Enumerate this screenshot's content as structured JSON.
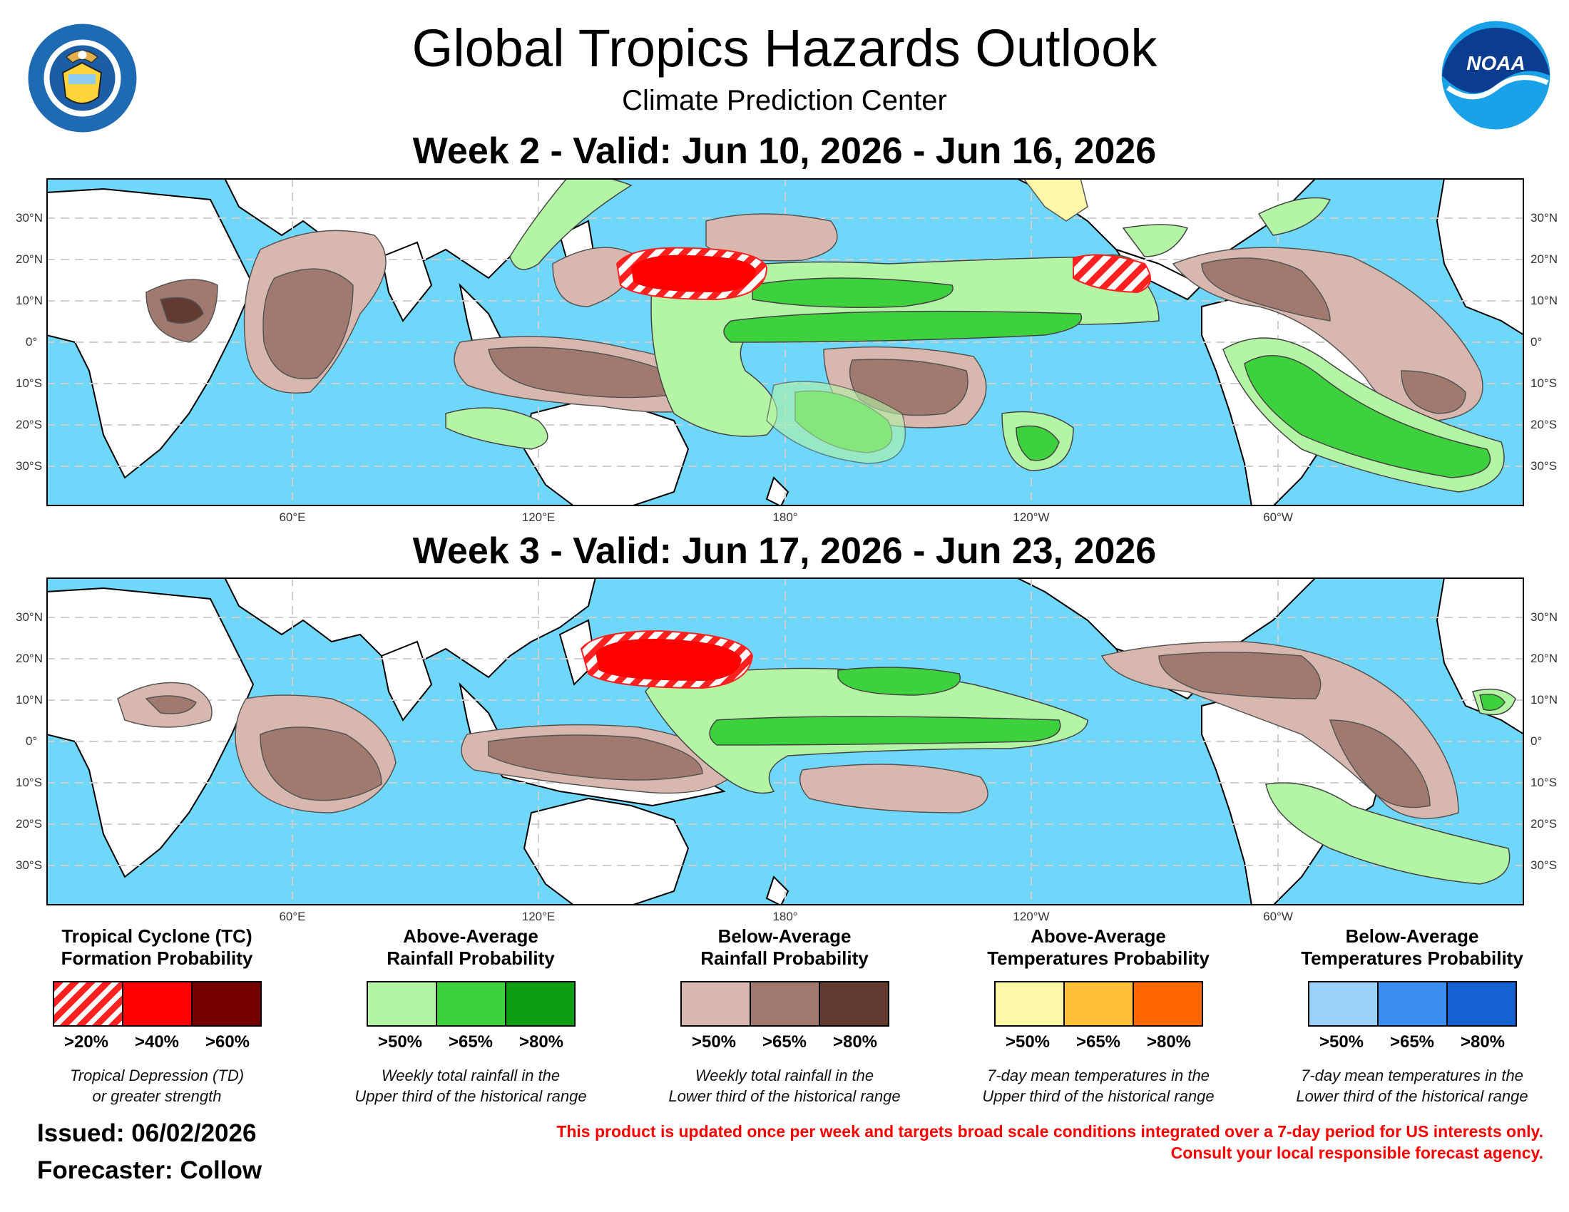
{
  "header": {
    "title": "Global Tropics Hazards Outlook",
    "subtitle": "Climate Prediction Center"
  },
  "logos": {
    "left": {
      "name": "department-of-commerce-seal",
      "text": "DEPARTMENT OF COMMERCE · UNITED STATES OF AMERICA"
    },
    "right": {
      "name": "noaa-logo",
      "text": "NOAA"
    }
  },
  "maps": [
    {
      "title": "Week 2 - Valid: Jun 10, 2026 - Jun 16, 2026"
    },
    {
      "title": "Week 3 - Valid: Jun 17, 2026 - Jun 23, 2026"
    }
  ],
  "axes": {
    "lat_labels": [
      "30°N",
      "20°N",
      "10°N",
      "0°",
      "10°S",
      "20°S",
      "30°S"
    ],
    "lon_labels": [
      "60°E",
      "120°E",
      "180°",
      "120°W",
      "60°W"
    ]
  },
  "colors": {
    "ocean": "#6fd8fa",
    "land": "#ffffff",
    "rain_above": [
      "#b3f5a5",
      "#3dd23d",
      "#0e9e12"
    ],
    "rain_below": [
      "#d8b8ae",
      "#a07a6e",
      "#633a30"
    ],
    "tc": [
      "hatched-red",
      "#ff0000",
      "#750000"
    ],
    "temp_above": [
      "#fff7a8",
      "#ffc23a",
      "#ff6600"
    ],
    "temp_below": [
      "#9ad2fa",
      "#3b8ff0",
      "#1561d4"
    ]
  },
  "legend": [
    {
      "title_line1": "Tropical Cyclone (TC)",
      "title_line2": "Formation Probability",
      "percents": [
        ">20%",
        ">40%",
        ">60%"
      ],
      "desc_line1": "Tropical Depression (TD)",
      "desc_line2": "or greater strength"
    },
    {
      "title_line1": "Above-Average",
      "title_line2": "Rainfall Probability",
      "percents": [
        ">50%",
        ">65%",
        ">80%"
      ],
      "desc_line1": "Weekly total rainfall in the",
      "desc_line2": "Upper third of the historical range"
    },
    {
      "title_line1": "Below-Average",
      "title_line2": "Rainfall Probability",
      "percents": [
        ">50%",
        ">65%",
        ">80%"
      ],
      "desc_line1": "Weekly total rainfall in the",
      "desc_line2": "Lower third of the historical range"
    },
    {
      "title_line1": "Above-Average",
      "title_line2": "Temperatures Probability",
      "percents": [
        ">50%",
        ">65%",
        ">80%"
      ],
      "desc_line1": "7-day mean temperatures in the",
      "desc_line2": "Upper third of the historical range"
    },
    {
      "title_line1": "Below-Average",
      "title_line2": "Temperatures Probability",
      "percents": [
        ">50%",
        ">65%",
        ">80%"
      ],
      "desc_line1": "7-day mean temperatures in the",
      "desc_line2": "Lower third of the historical range"
    }
  ],
  "footer": {
    "issued": "Issued: 06/02/2026",
    "forecaster": "Forecaster: Collow",
    "disclaimer_line1": "This product is updated once per week and targets broad scale conditions integrated over a 7-day period for US interests only.",
    "disclaimer_line2": "Consult your local responsible forecast agency."
  }
}
